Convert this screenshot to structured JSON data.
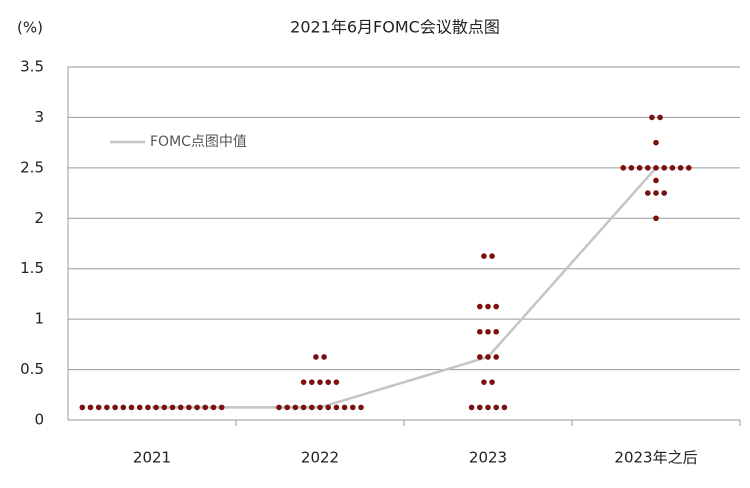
{
  "chart_data": {
    "type": "dot-plot",
    "title": "2021年6月FOMC会议散点图",
    "y_label": "(%)",
    "categories": [
      "2021",
      "2022",
      "2023",
      "2023年之后"
    ],
    "dots": [
      {
        "levels": [
          0.125
        ],
        "counts": [
          18
        ]
      },
      {
        "levels": [
          0.125,
          0.375,
          0.625
        ],
        "counts": [
          11,
          5,
          2
        ]
      },
      {
        "levels": [
          0.125,
          0.375,
          0.625,
          0.875,
          1.125,
          1.625
        ],
        "counts": [
          5,
          2,
          3,
          3,
          3,
          2
        ]
      },
      {
        "levels": [
          2.0,
          2.25,
          2.375,
          2.5,
          2.75,
          3.0
        ],
        "counts": [
          1,
          3,
          1,
          9,
          1,
          2
        ]
      }
    ],
    "dot_color": "#7a1010",
    "series": [
      {
        "name": "FOMC点图中值",
        "color": "#c4c4c4",
        "values": [
          0.125,
          0.125,
          0.625,
          2.5
        ]
      }
    ],
    "ylim": [
      0,
      3.5
    ],
    "yticks": [
      0,
      0.5,
      1,
      1.5,
      2,
      2.5,
      3,
      3.5
    ],
    "grid": true,
    "legend": "upper-left"
  }
}
